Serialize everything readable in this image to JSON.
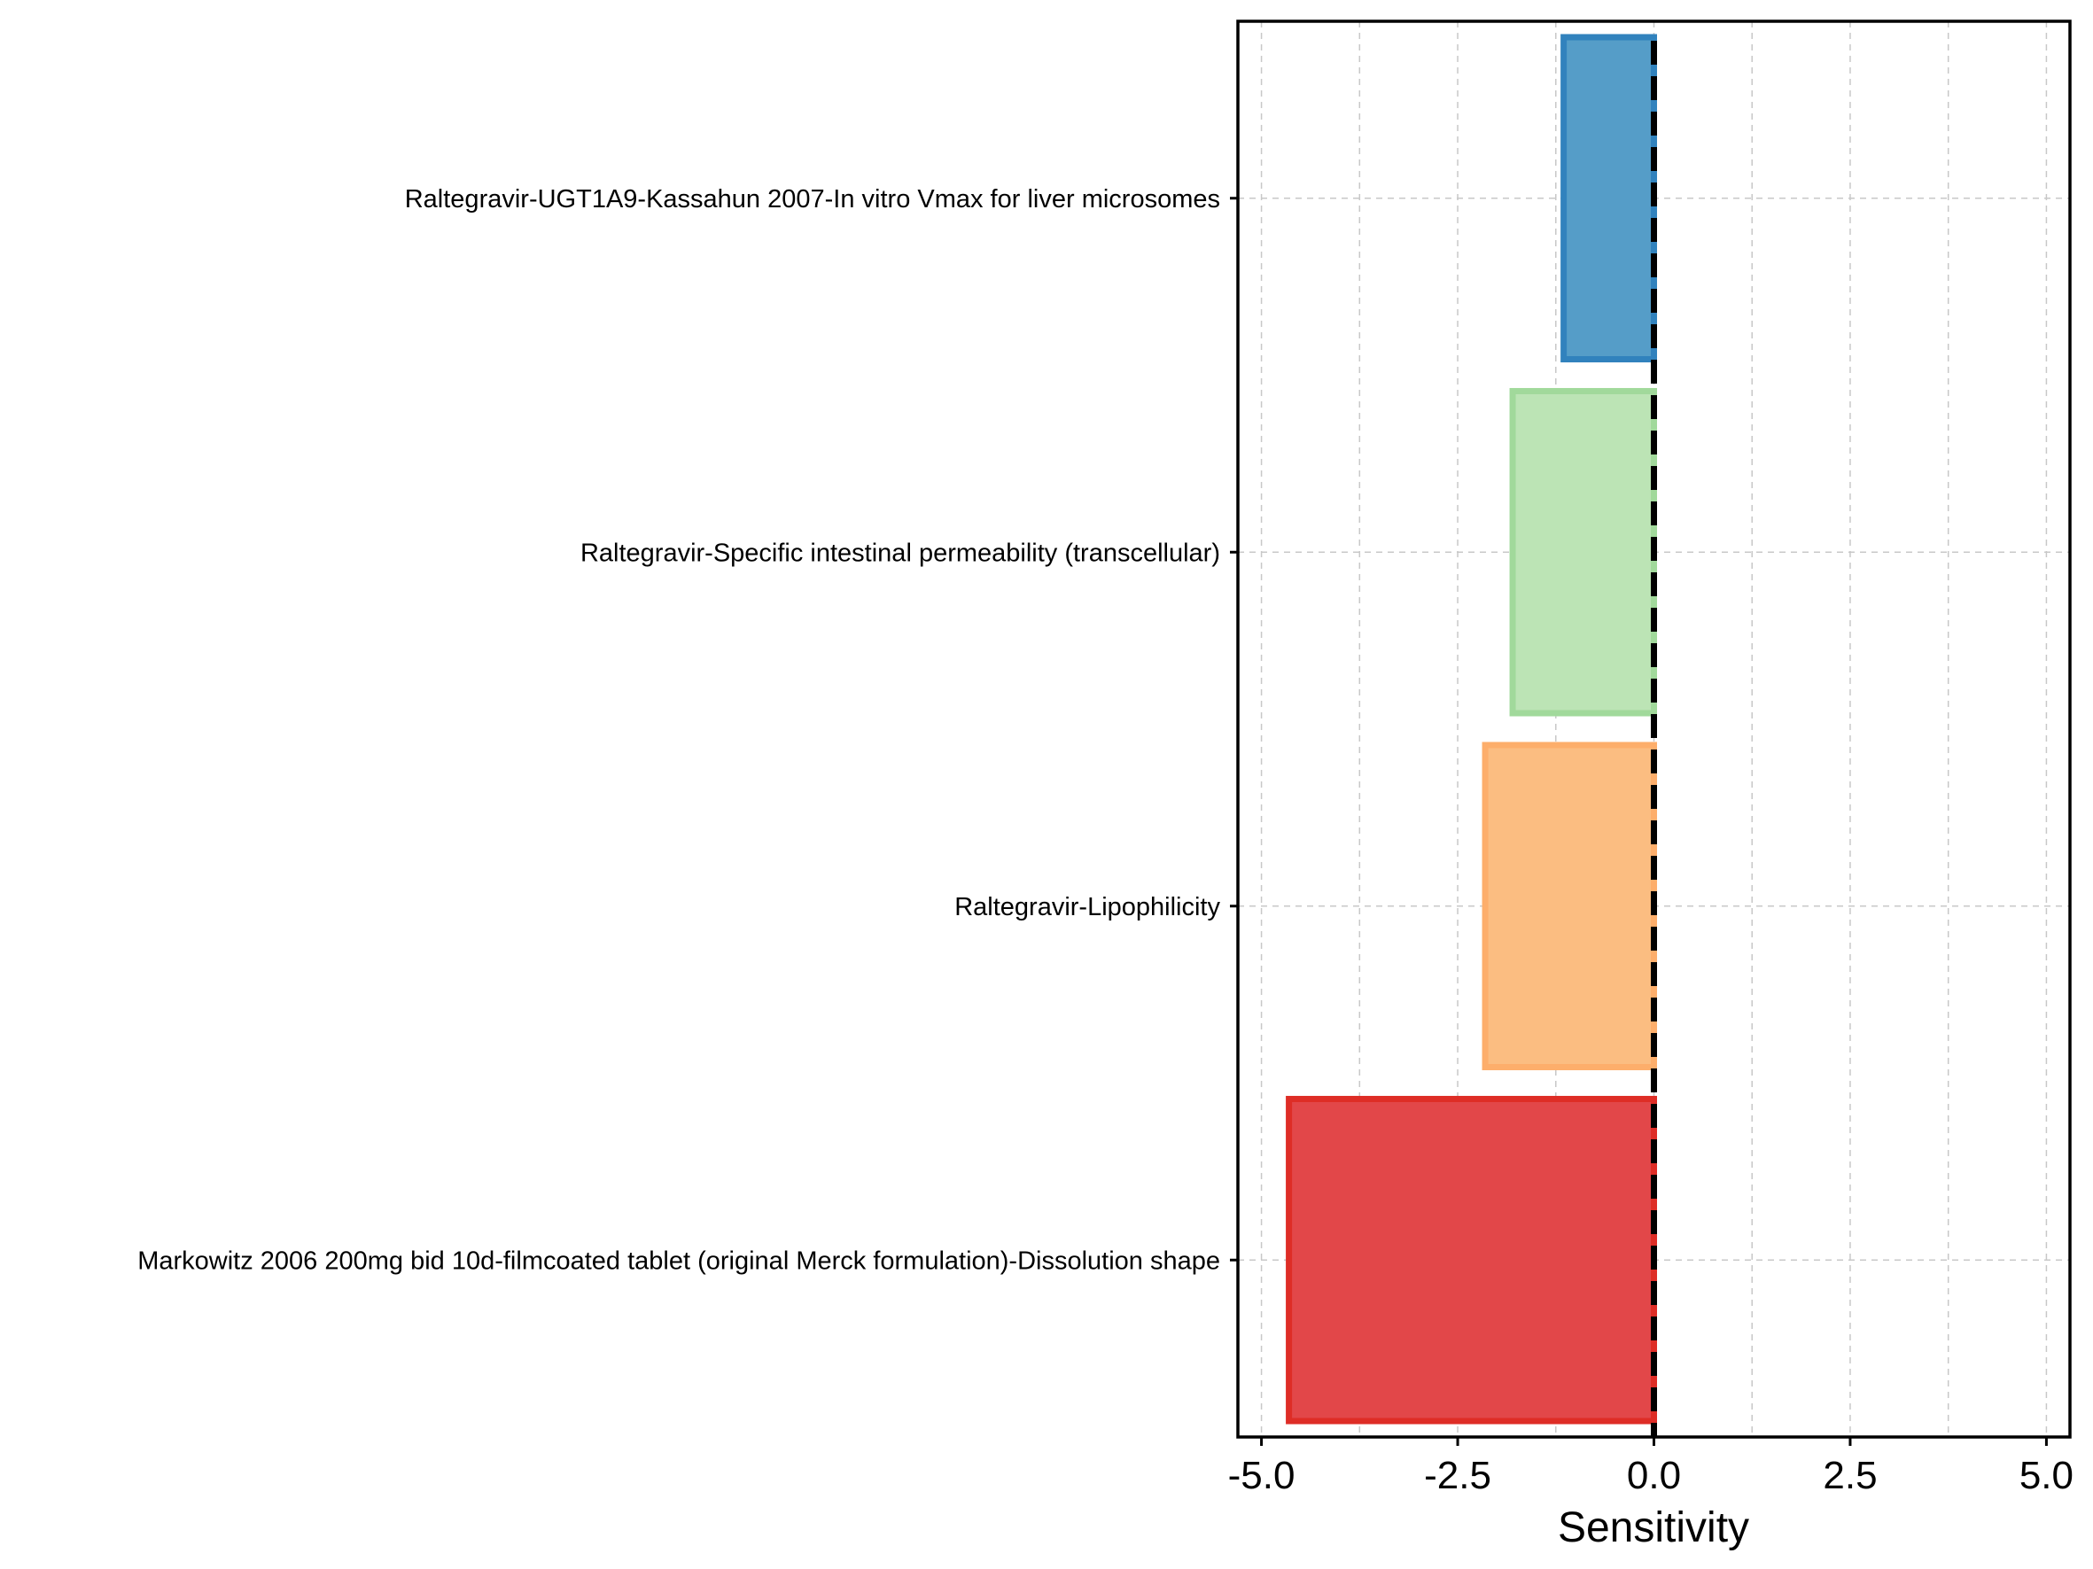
{
  "chart_data": {
    "type": "bar",
    "orientation": "horizontal",
    "categories": [
      "Raltegravir-UGT1A9-Kassahun 2007-In vitro Vmax for liver microsomes",
      "Raltegravir-Specific intestinal permeability (transcellular)",
      "Raltegravir-Lipophilicity",
      "Markowitz 2006 200mg bid 10d-filmcoated tablet (original Merck formulation)-Dissolution shape"
    ],
    "values": [
      -1.15,
      -1.8,
      -2.15,
      -4.65
    ],
    "colors": [
      "#3182bd",
      "#a1d99b",
      "#fdae6b",
      "#de2d26"
    ],
    "fill_colors": [
      "#559dc8",
      "#bce4b5",
      "#fbbd81",
      "#e24749"
    ],
    "xlabel": "Sensitivity",
    "ylabel": "",
    "title": "",
    "xlim": [
      -5.3,
      5.3
    ],
    "xticks": [
      -5.0,
      -2.5,
      0.0,
      2.5,
      5.0
    ],
    "xtick_labels": [
      "-5.0",
      "-2.5",
      "0.0",
      "2.5",
      "5.0"
    ],
    "grid": true,
    "reference_line": {
      "x": 0.0,
      "style": "dashed",
      "color": "#000000"
    },
    "legend": "none"
  }
}
